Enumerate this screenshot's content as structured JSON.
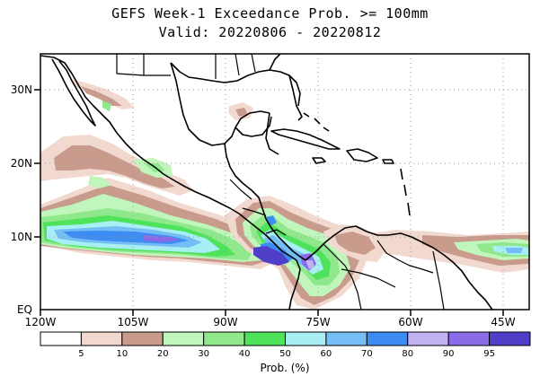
{
  "title": {
    "line1": "GEFS Week-1 Exceedance Prob. >= 100mm",
    "line2": "Valid: 20220806 - 20220812"
  },
  "map": {
    "lon_range": [
      -120,
      -41
    ],
    "lat_range": [
      0,
      35
    ],
    "lon_ticks": [
      {
        "value": -120,
        "label": "120W"
      },
      {
        "value": -105,
        "label": "105W"
      },
      {
        "value": -90,
        "label": "90W"
      },
      {
        "value": -75,
        "label": "75W"
      },
      {
        "value": -60,
        "label": "60W"
      },
      {
        "value": -45,
        "label": "45W"
      }
    ],
    "lat_ticks": [
      {
        "value": 0,
        "label": "EQ"
      },
      {
        "value": 10,
        "label": "10N"
      },
      {
        "value": 20,
        "label": "20N"
      },
      {
        "value": 30,
        "label": "30N"
      }
    ],
    "gridlines": "dotted"
  },
  "colorbar": {
    "label": "Prob. (%)",
    "colors": [
      "#ffffff",
      "#f2d9cf",
      "#c89b8c",
      "#c0f5bb",
      "#8fe88b",
      "#4ee35a",
      "#a8eff3",
      "#74bdf5",
      "#3d8cf2",
      "#c2b2f2",
      "#8a6be8",
      "#4f3ec8"
    ],
    "tick_labels": [
      "5",
      "10",
      "20",
      "30",
      "40",
      "50",
      "60",
      "70",
      "80",
      "90",
      "95"
    ]
  }
}
